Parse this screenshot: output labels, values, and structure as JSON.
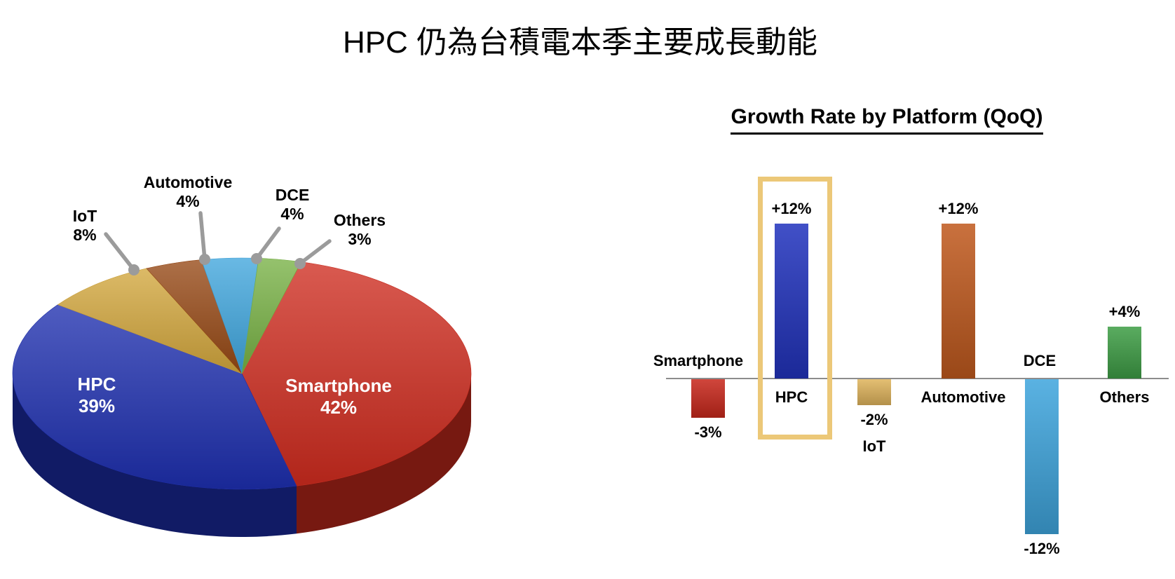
{
  "slide": {
    "title": "HPC 仍為台積電本季主要成長動能"
  },
  "chart_data": [
    {
      "type": "pie",
      "style": "3d",
      "description": "Revenue share by platform",
      "unit": "%",
      "start_angle_deg": 15,
      "slices": [
        {
          "label": "Smartphone",
          "value": 42,
          "pct_label": "42%",
          "color": "#CE2B1E"
        },
        {
          "label": "HPC",
          "value": 39,
          "pct_label": "39%",
          "color": "#1D2EAE"
        },
        {
          "label": "IoT",
          "value": 8,
          "pct_label": "8%",
          "color": "#D2A63C"
        },
        {
          "label": "Automotive",
          "value": 4,
          "pct_label": "4%",
          "color": "#964814"
        },
        {
          "label": "DCE",
          "value": 4,
          "pct_label": "4%",
          "color": "#3FA5DD"
        },
        {
          "label": "Others",
          "value": 3,
          "pct_label": "3%",
          "color": "#77B144"
        }
      ],
      "leader_color": "#9B9B9B"
    },
    {
      "type": "bar",
      "title": "Growth Rate by Platform (QoQ)",
      "categories": [
        "Smartphone",
        "HPC",
        "IoT",
        "Automotive",
        "DCE",
        "Others"
      ],
      "values": [
        -3,
        12,
        -2,
        12,
        -12,
        4
      ],
      "value_labels": [
        "-3%",
        "+12%",
        "-2%",
        "+12%",
        "-12%",
        "+4%"
      ],
      "colors": [
        "#C8281C",
        "#2233BE",
        "#E0B45C",
        "#C05A1E",
        "#3FA5DD",
        "#3F9E46"
      ],
      "ylim": [
        -13,
        13
      ],
      "grid": false,
      "legend": false,
      "axis_color": "#8C8C8C",
      "highlight": {
        "category": "HPC",
        "box_color": "#ECC878"
      }
    }
  ]
}
